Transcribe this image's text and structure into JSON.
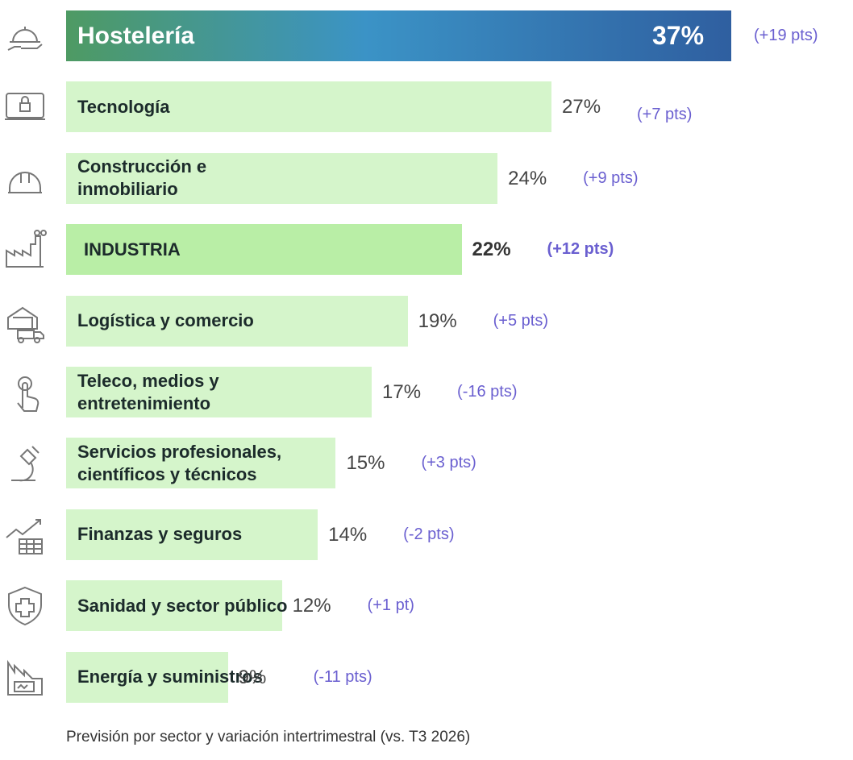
{
  "chart_data": {
    "type": "bar",
    "orientation": "horizontal",
    "categories": [
      "Hostelería",
      "Tecnología",
      "Construcción e inmobiliario",
      "INDUSTRIA",
      "Logística y comercio",
      "Teleco, medios y entretenimiento",
      "Servicios profesionales, científicos y técnicos",
      "Finanzas y seguros",
      "Sanidad y sector público",
      "Energía y suministros"
    ],
    "values": [
      37,
      27,
      24,
      22,
      19,
      17,
      15,
      14,
      12,
      9
    ],
    "value_labels": [
      "37%",
      "27%",
      "24%",
      "22%",
      "19%",
      "17%",
      "15%",
      "14%",
      "12%",
      "9%"
    ],
    "change_labels": [
      "(+19 pts)",
      "(+7 pts)",
      "(+9 pts)",
      "(+12 pts)",
      "(+5 pts)",
      "(-16 pts)",
      "(+3 pts)",
      "(-2 pts)",
      "(+1 pt)",
      "(-11 pts)"
    ],
    "color": "#d5f5cb",
    "footnote": "Previsión por sector y variación intertrimestral (vs. T3 2026)"
  }
}
